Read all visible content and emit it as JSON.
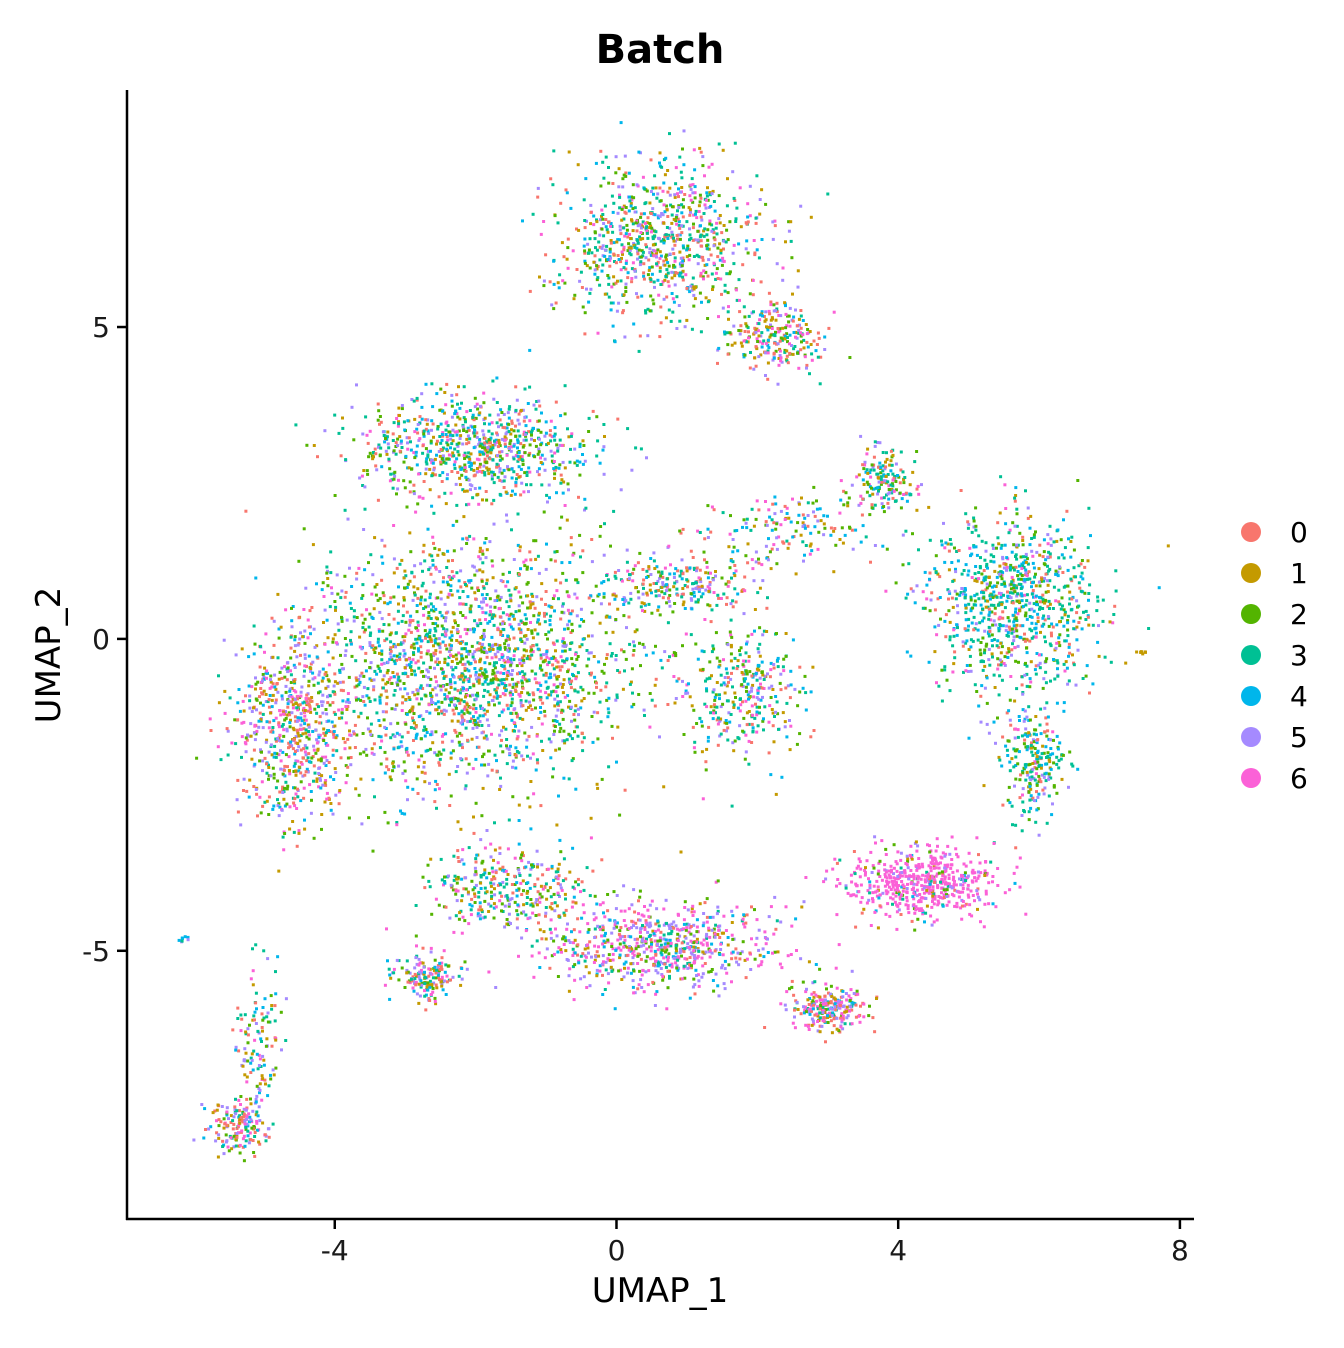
{
  "chart_data": {
    "type": "scatter",
    "title": "Batch",
    "xlabel": "UMAP_1",
    "ylabel": "UMAP_2",
    "xlim": [
      -6.95,
      8.2
    ],
    "ylim": [
      -9.3,
      8.8
    ],
    "xticks": [
      -4,
      0,
      4,
      8
    ],
    "yticks": [
      -5,
      0,
      5
    ],
    "xtick_labels": [
      "-4",
      "0",
      "4",
      "8"
    ],
    "ytick_labels": [
      "-5",
      "0",
      "5"
    ],
    "legend_position": "right",
    "series": [
      {
        "name": "0",
        "color": "#F8766D"
      },
      {
        "name": "1",
        "color": "#C49A00"
      },
      {
        "name": "2",
        "color": "#53B400"
      },
      {
        "name": "3",
        "color": "#00C094"
      },
      {
        "name": "4",
        "color": "#00B6EB"
      },
      {
        "name": "5",
        "color": "#A58AFF"
      },
      {
        "name": "6",
        "color": "#FB61D7"
      }
    ],
    "point_regions": [
      {
        "cx": -2.1,
        "cy": -0.4,
        "rx": 2.6,
        "ry": 2.2,
        "weight": 26,
        "mix": [
          1,
          1,
          1.6,
          1.6,
          1.2,
          1.2,
          0.6
        ]
      },
      {
        "cx": -4.6,
        "cy": -1.4,
        "rx": 0.9,
        "ry": 1.7,
        "weight": 8,
        "mix": [
          1.4,
          1.2,
          0.8,
          0.8,
          0.8,
          1.6,
          1.2
        ]
      },
      {
        "cx": -2.0,
        "cy": 3.1,
        "rx": 1.9,
        "ry": 0.9,
        "weight": 10,
        "mix": [
          1,
          1,
          1.4,
          1.5,
          1.2,
          1.3,
          0.6
        ]
      },
      {
        "cx": 0.6,
        "cy": 6.4,
        "rx": 1.6,
        "ry": 1.4,
        "weight": 11,
        "mix": [
          1.2,
          1,
          1.2,
          1.6,
          1,
          1.1,
          0.7
        ]
      },
      {
        "cx": 2.2,
        "cy": 4.9,
        "rx": 0.8,
        "ry": 0.6,
        "weight": 3,
        "mix": [
          1.4,
          1.6,
          1,
          1,
          0.8,
          1,
          0.8
        ]
      },
      {
        "cx": 5.6,
        "cy": 0.6,
        "rx": 1.3,
        "ry": 1.6,
        "weight": 11,
        "mix": [
          0.8,
          0.6,
          1,
          2.2,
          1.8,
          0.8,
          0.4
        ]
      },
      {
        "cx": 5.9,
        "cy": -1.9,
        "rx": 0.5,
        "ry": 1.0,
        "weight": 3,
        "mix": [
          0.6,
          0.6,
          1.2,
          2,
          1.4,
          0.8,
          0.4
        ]
      },
      {
        "cx": 3.8,
        "cy": 2.6,
        "rx": 0.5,
        "ry": 0.5,
        "weight": 2,
        "mix": [
          0.8,
          0.6,
          1,
          2,
          1.4,
          0.8,
          0.4
        ]
      },
      {
        "cx": 4.3,
        "cy": -3.9,
        "rx": 1.2,
        "ry": 0.6,
        "weight": 7,
        "mix": [
          0.3,
          0.2,
          0.3,
          0.3,
          0.3,
          0.8,
          6
        ]
      },
      {
        "cx": 0.6,
        "cy": -4.9,
        "rx": 1.8,
        "ry": 0.8,
        "weight": 9,
        "mix": [
          1,
          0.6,
          0.8,
          0.6,
          0.8,
          2,
          2.6
        ]
      },
      {
        "cx": 3.0,
        "cy": -5.9,
        "rx": 0.6,
        "ry": 0.4,
        "weight": 3,
        "mix": [
          1.2,
          0.8,
          0.8,
          0.6,
          0.6,
          1.6,
          2.4
        ]
      },
      {
        "cx": 1.8,
        "cy": -0.8,
        "rx": 0.9,
        "ry": 1.2,
        "weight": 4,
        "mix": [
          1,
          1,
          1.2,
          1.6,
          1,
          1,
          0.8
        ]
      },
      {
        "cx": 0.9,
        "cy": 0.9,
        "rx": 1.2,
        "ry": 0.5,
        "weight": 3,
        "mix": [
          1.6,
          1.2,
          0.8,
          1,
          0.8,
          1,
          0.8
        ]
      },
      {
        "cx": -2.7,
        "cy": -5.4,
        "rx": 0.5,
        "ry": 0.4,
        "weight": 2,
        "mix": [
          1.4,
          1.2,
          1,
          1,
          0.8,
          1.6,
          1.2
        ]
      },
      {
        "cx": -5.4,
        "cy": -7.8,
        "rx": 0.5,
        "ry": 0.5,
        "weight": 2,
        "mix": [
          1.6,
          1,
          1,
          1,
          0.8,
          1.4,
          1.4
        ]
      },
      {
        "cx": -5.1,
        "cy": -6.5,
        "rx": 0.4,
        "ry": 1.4,
        "weight": 1.5,
        "mix": [
          1,
          1,
          1.2,
          1.4,
          1,
          1.2,
          1
        ]
      },
      {
        "cx": -1.6,
        "cy": -4.0,
        "rx": 1.2,
        "ry": 0.8,
        "weight": 4,
        "mix": [
          1,
          1,
          1.2,
          1.4,
          1,
          1.4,
          1
        ]
      },
      {
        "cx": 2.4,
        "cy": 1.8,
        "rx": 1.4,
        "ry": 0.6,
        "weight": 2,
        "mix": [
          1,
          1,
          1,
          1.2,
          1,
          1.2,
          1
        ]
      },
      {
        "cx": 7.45,
        "cy": -0.2,
        "rx": 0.08,
        "ry": 0.04,
        "weight": 0.05,
        "mix": [
          0,
          1,
          0,
          0,
          0,
          0,
          0
        ]
      },
      {
        "cx": -6.2,
        "cy": -4.8,
        "rx": 0.12,
        "ry": 0.06,
        "weight": 0.05,
        "mix": [
          0,
          0,
          0,
          1,
          1,
          1,
          0
        ]
      }
    ]
  }
}
